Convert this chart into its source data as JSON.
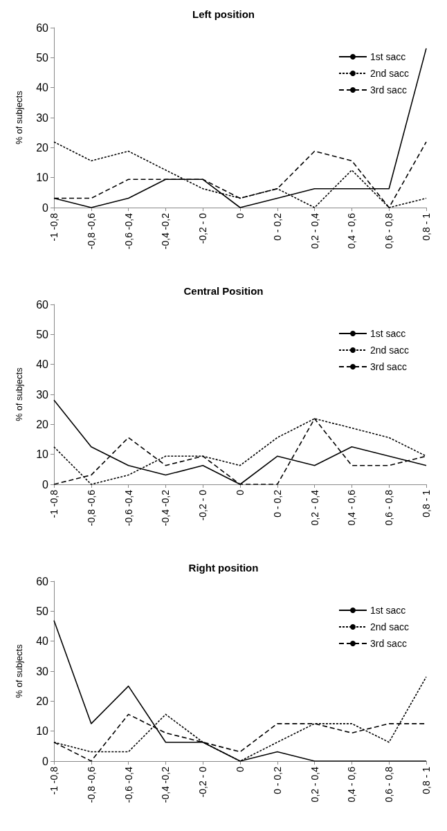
{
  "chart_data": [
    {
      "type": "line",
      "title": "Left position",
      "ylabel": "% of subjects",
      "categories": [
        "-1 -0,8",
        "-0,8 -0,6",
        "-0,6 -0,4",
        "-0,4 -0,2",
        "-0,2 - 0",
        "0",
        "0 - 0,2",
        "0,2 - 0,4",
        "0,4 - 0,6",
        "0,6 - 0,8",
        "0,8 - 1"
      ],
      "ylim": [
        0,
        60
      ],
      "yticks": [
        0,
        10,
        20,
        30,
        40,
        50,
        60
      ],
      "grid": false,
      "legend": "top right",
      "marker": "none",
      "series": [
        {
          "name": "1st sacc",
          "color": "#000000",
          "line_style": "solid",
          "values": [
            3.1,
            0,
            3.1,
            9.4,
            9.4,
            0,
            3.1,
            6.3,
            6.3,
            6.3,
            53.1
          ]
        },
        {
          "name": "2nd sacc",
          "color": "#000000",
          "line_style": "dotted",
          "values": [
            21.9,
            15.6,
            18.8,
            12.5,
            6.3,
            3.1,
            6.3,
            0,
            12.5,
            0,
            3.1
          ]
        },
        {
          "name": "3rd sacc",
          "color": "#000000",
          "line_style": "dashed",
          "values": [
            3.1,
            3.1,
            9.4,
            9.4,
            9.4,
            3.1,
            6.3,
            18.8,
            15.6,
            0,
            21.9
          ]
        }
      ]
    },
    {
      "type": "line",
      "title": "Central Position",
      "ylabel": "% of subjects",
      "categories": [
        "-1 -0,8",
        "-0,8 -0,6",
        "-0,6 -0,4",
        "-0,4 -0,2",
        "-0,2 - 0",
        "0",
        "0 - 0,2",
        "0,2 - 0,4",
        "0,4 - 0,6",
        "0,6 - 0,8",
        "0,8 - 1"
      ],
      "ylim": [
        0,
        60
      ],
      "yticks": [
        0,
        10,
        20,
        30,
        40,
        50,
        60
      ],
      "grid": false,
      "legend": "top right",
      "marker": "none",
      "series": [
        {
          "name": "1st sacc",
          "color": "#000000",
          "line_style": "solid",
          "values": [
            28.1,
            12.5,
            6.3,
            3.1,
            6.3,
            0,
            9.4,
            6.3,
            12.5,
            9.4,
            6.3
          ]
        },
        {
          "name": "2nd sacc",
          "color": "#000000",
          "line_style": "dotted",
          "values": [
            12.5,
            0,
            3.1,
            9.4,
            9.4,
            6.3,
            15.6,
            21.9,
            18.8,
            15.6,
            9.4
          ]
        },
        {
          "name": "3rd sacc",
          "color": "#000000",
          "line_style": "dashed",
          "values": [
            0,
            3.1,
            15.6,
            6.3,
            9.4,
            0,
            0,
            21.9,
            6.3,
            6.3,
            9.4
          ]
        }
      ]
    },
    {
      "type": "line",
      "title": "Right position",
      "ylabel": "% of subjects",
      "categories": [
        "-1 -0,8",
        "-0,8 -0,6",
        "-0,6 -0,4",
        "-0,4 -0,2",
        "-0,2 - 0",
        "0",
        "0 - 0,2",
        "0,2 - 0,4",
        "0,4 - 0,6",
        "0,6 - 0,8",
        "0,8 - 1"
      ],
      "ylim": [
        0,
        60
      ],
      "yticks": [
        0,
        10,
        20,
        30,
        40,
        50,
        60
      ],
      "grid": false,
      "legend": "top right",
      "marker": "none",
      "series": [
        {
          "name": "1st sacc",
          "color": "#000000",
          "line_style": "solid",
          "values": [
            46.9,
            12.5,
            25,
            6.3,
            6.3,
            0,
            3.1,
            0,
            0,
            0,
            0
          ]
        },
        {
          "name": "2nd sacc",
          "color": "#000000",
          "line_style": "dotted",
          "values": [
            6.3,
            3.1,
            3.1,
            15.6,
            6.3,
            0,
            6.3,
            12.5,
            12.5,
            6.3,
            28.1
          ]
        },
        {
          "name": "3rd sacc",
          "color": "#000000",
          "line_style": "dashed",
          "values": [
            6.3,
            0,
            15.6,
            9.4,
            6.3,
            3.1,
            12.5,
            12.5,
            9.4,
            12.5,
            12.5
          ]
        }
      ]
    }
  ]
}
